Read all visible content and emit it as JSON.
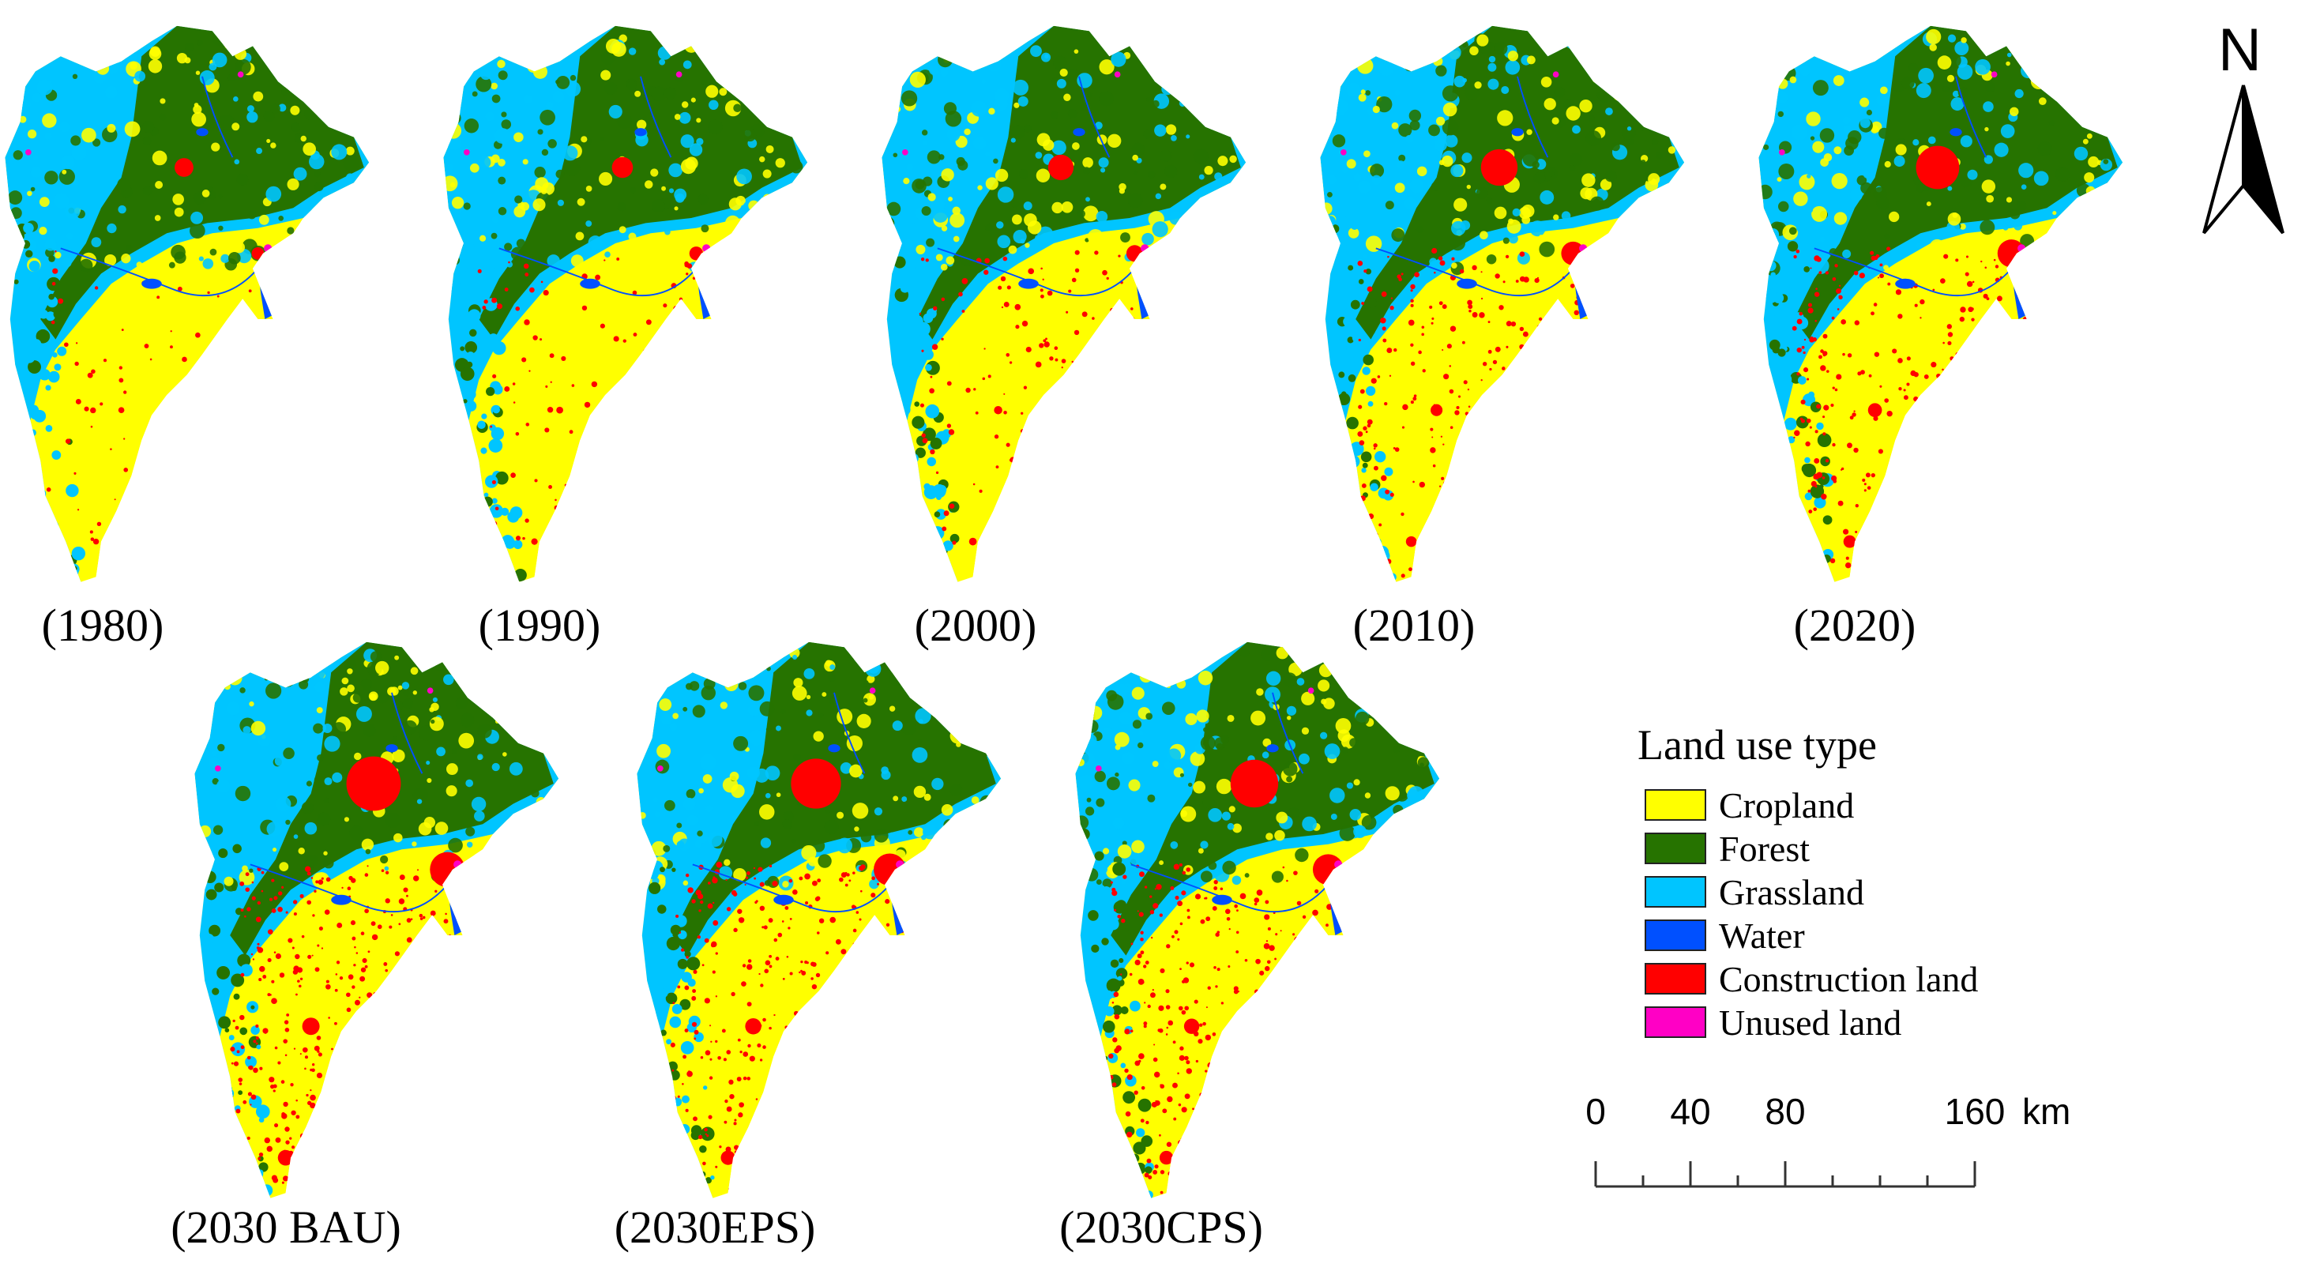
{
  "panels": [
    {
      "label": "(1980)"
    },
    {
      "label": "(1990)"
    },
    {
      "label": "(2000)"
    },
    {
      "label": "(2010)"
    },
    {
      "label": "(2020)"
    },
    {
      "label": "(2030 BAU)"
    },
    {
      "label": "(2030EPS)"
    },
    {
      "label": "(2030CPS)"
    }
  ],
  "north_arrow": {
    "label": "N"
  },
  "legend": {
    "title": "Land use type",
    "items": [
      {
        "label": "Cropland",
        "color": "#ffff00"
      },
      {
        "label": "Forest",
        "color": "#267300"
      },
      {
        "label": "Grassland",
        "color": "#00c5ff"
      },
      {
        "label": "Water",
        "color": "#0050ff"
      },
      {
        "label": "Construction land",
        "color": "#ff0000"
      },
      {
        "label": "Unused land",
        "color": "#ff00c5"
      }
    ]
  },
  "scale_bar": {
    "ticks": [
      "0",
      "40",
      "80",
      "160"
    ],
    "unit": "km"
  }
}
